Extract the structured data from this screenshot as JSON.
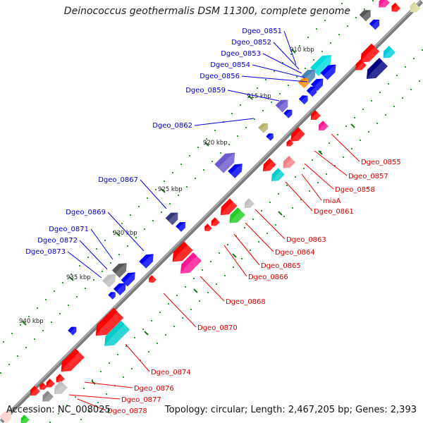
{
  "title": "Deinococcus geothermalis DSM 11300, complete genome",
  "footer": {
    "accession": "Accession: NC_008025",
    "topology": "Topology: circular; Length: 2,467,205 bp; Genes: 2,393"
  },
  "colors": {
    "backbone": "#7f7f7f",
    "forward_label": "#0000cc",
    "reverse_label": "#dd0000",
    "tick": "#1a7a1a"
  },
  "kbp_ticks": [
    {
      "label": "910 kbp",
      "kbp": 910
    },
    {
      "label": "915 kbp",
      "kbp": 915
    },
    {
      "label": "920 kbp",
      "kbp": 920
    },
    {
      "label": "925 kbp",
      "kbp": 925
    },
    {
      "label": "930 kbp",
      "kbp": 930
    },
    {
      "label": "935 kbp",
      "kbp": 935
    },
    {
      "label": "940 kbp",
      "kbp": 940
    }
  ],
  "gene_labels_forward": [
    {
      "label": "Dgeo_0851"
    },
    {
      "label": "Dgeo_0852"
    },
    {
      "label": "Dgeo_0853"
    },
    {
      "label": "Dgeo_0854"
    },
    {
      "label": "Dgeo_0856"
    },
    {
      "label": "Dgeo_0859"
    },
    {
      "label": "Dgeo_0862"
    },
    {
      "label": "Dgeo_0867"
    },
    {
      "label": "Dgeo_0869"
    },
    {
      "label": "Dgeo_0871"
    },
    {
      "label": "Dgeo_0872"
    },
    {
      "label": "Dgeo_0873"
    }
  ],
  "gene_labels_reverse": [
    {
      "label": "Dgeo_0855"
    },
    {
      "label": "Dgeo_0857"
    },
    {
      "label": "Dgeo_0858"
    },
    {
      "label": "miaA"
    },
    {
      "label": "Dgeo_0861"
    },
    {
      "label": "Dgeo_0863"
    },
    {
      "label": "Dgeo_0864"
    },
    {
      "label": "Dgeo_0865"
    },
    {
      "label": "Dgeo_0866"
    },
    {
      "label": "Dgeo_0868"
    },
    {
      "label": "Dgeo_0870"
    },
    {
      "label": "Dgeo_0874"
    },
    {
      "label": "Dgeo_0876"
    },
    {
      "label": "Dgeo_0877"
    },
    {
      "label": "Dgeo_0878"
    }
  ]
}
